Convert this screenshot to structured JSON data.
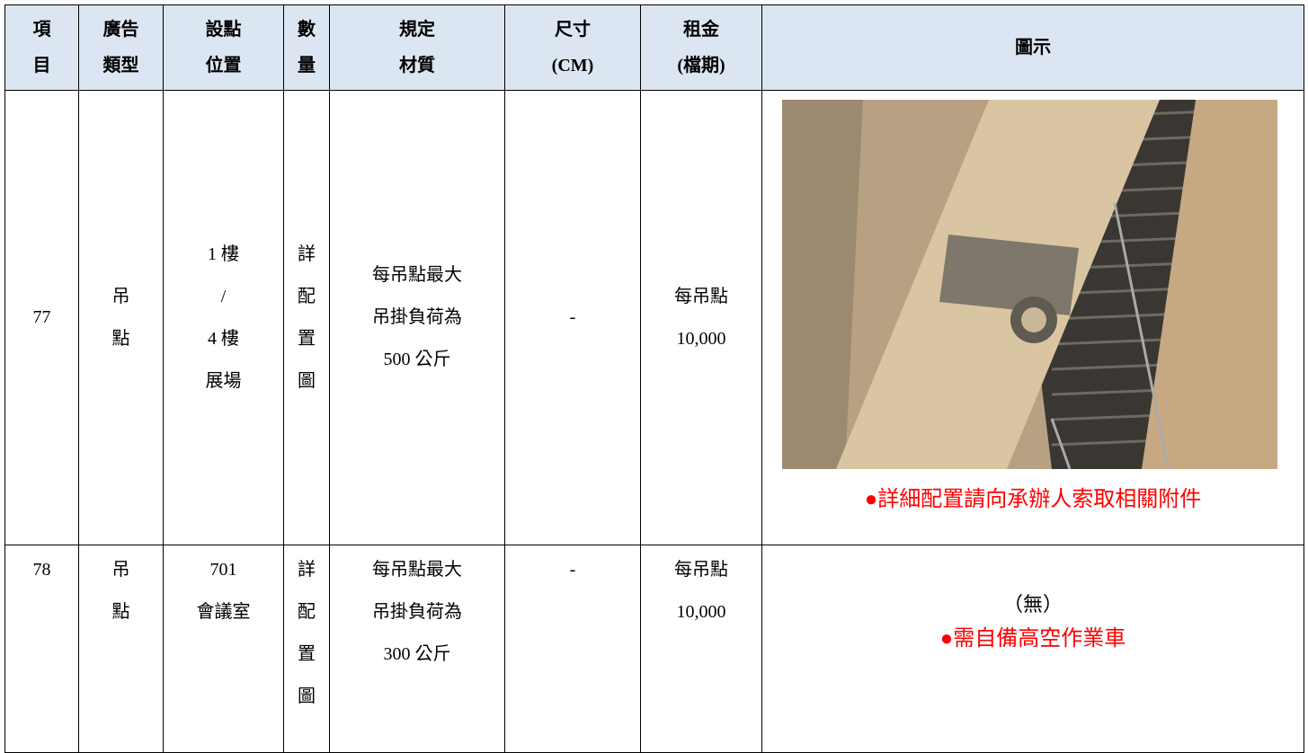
{
  "table": {
    "header": [
      [
        "項",
        "目"
      ],
      [
        "廣告",
        "類型"
      ],
      [
        "設點",
        "位置"
      ],
      [
        "數",
        "量"
      ],
      [
        "規定",
        "材質"
      ],
      [
        "尺寸",
        "(CM)"
      ],
      [
        "租金",
        "(檔期)"
      ],
      [
        "圖示"
      ]
    ],
    "rows": [
      {
        "cells": [
          [
            "77"
          ],
          [
            "吊",
            "點"
          ],
          [
            "1 樓",
            "/",
            "4 樓",
            "展場"
          ],
          [
            "詳",
            "配",
            "置",
            "圖"
          ],
          [
            "每吊點最大",
            "吊掛負荷為",
            "500 公斤"
          ],
          [
            "-"
          ],
          [
            "每吊點",
            "10,000"
          ]
        ],
        "figure": [
          "●詳細配置請向承辦人索取相關附件"
        ]
      },
      {
        "cells": [
          [
            "78"
          ],
          [
            "吊",
            "點"
          ],
          [
            "701",
            "會議室"
          ],
          [
            "詳",
            "配",
            "置",
            "圖"
          ],
          [
            "每吊點最大",
            "吊掛負荷為",
            "300 公斤"
          ],
          [
            "-"
          ],
          [
            "每吊點",
            "10,000"
          ]
        ],
        "figure": [
          "（無）",
          "●需自備高空作業車"
        ]
      }
    ]
  }
}
